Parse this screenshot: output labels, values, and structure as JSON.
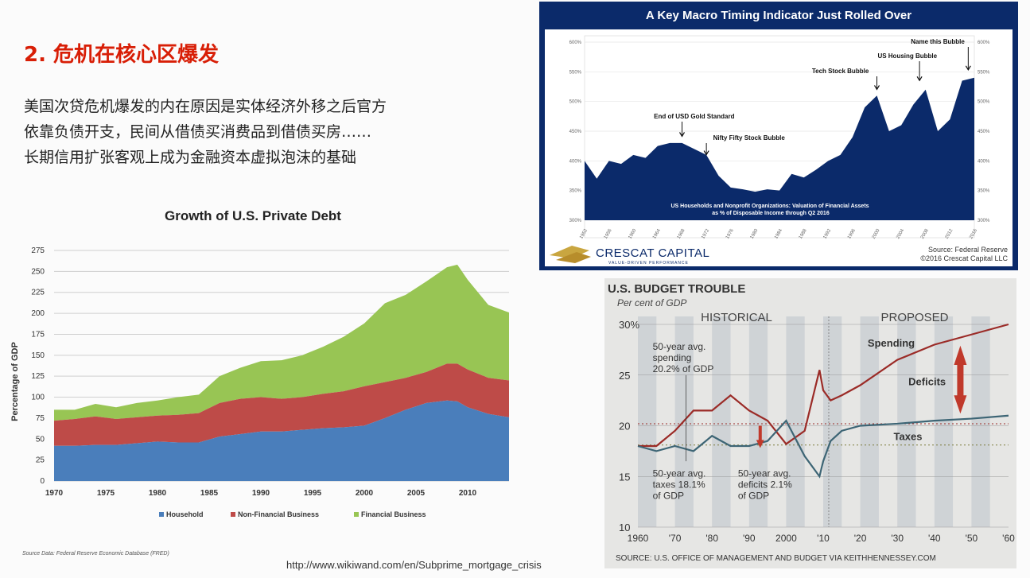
{
  "slide": {
    "title": "2. 危机在核心区爆发",
    "paragraph_lines": [
      "美国次贷危机爆发的内在原因是实体经济外移之后官方",
      "依靠负债开支，民间从借债买消费品到借债买房……",
      "长期信用扩张客观上成为金融资本虚拟泡沫的基础"
    ],
    "url": "http://www.wikiwand.com/en/Subprime_mortgage_crisis"
  },
  "chart_data": [
    {
      "type": "area",
      "title": "Growth of U.S. Private Debt",
      "ylabel": "Percentage of GDP",
      "xlabel": "",
      "ylim": [
        0,
        275
      ],
      "xlim": [
        1970,
        2014
      ],
      "yticks": [
        0,
        25,
        50,
        75,
        100,
        125,
        150,
        175,
        200,
        225,
        250,
        275
      ],
      "xticks": [
        1970,
        1975,
        1980,
        1985,
        1990,
        1995,
        2000,
        2005,
        2010
      ],
      "grid": true,
      "legend_position": "bottom",
      "source_note": "Source Data: Federal Reserve Economic Database (FRED)",
      "x": [
        1970,
        1972,
        1974,
        1976,
        1978,
        1980,
        1982,
        1984,
        1986,
        1988,
        1990,
        1992,
        1994,
        1996,
        1998,
        2000,
        2002,
        2004,
        2006,
        2008,
        2009,
        2010,
        2012,
        2014
      ],
      "series": [
        {
          "name": "Household",
          "color": "#4a7ebb",
          "stacked_top": [
            42,
            42,
            43,
            43,
            45,
            47,
            46,
            46,
            53,
            56,
            59,
            59,
            61,
            63,
            64,
            66,
            75,
            85,
            93,
            96,
            95,
            88,
            80,
            76
          ]
        },
        {
          "name": "Non-Financial Business",
          "color": "#be4b48",
          "stacked_top": [
            72,
            74,
            77,
            74,
            76,
            78,
            79,
            81,
            93,
            98,
            100,
            98,
            100,
            104,
            107,
            113,
            118,
            123,
            130,
            140,
            140,
            133,
            123,
            120
          ]
        },
        {
          "name": "Financial Business",
          "color": "#98c554",
          "stacked_top": [
            85,
            85,
            92,
            88,
            93,
            96,
            100,
            103,
            125,
            135,
            143,
            144,
            150,
            160,
            172,
            188,
            212,
            222,
            238,
            255,
            258,
            240,
            210,
            201
          ]
        }
      ]
    },
    {
      "type": "area",
      "title": "A Key Macro Timing Indicator Just Rolled Over",
      "subtitle": "US Households and Nonprofit Organizations: Valuation of Financial Assets as % of Disposable Income through Q2 2016",
      "ylim": [
        300,
        600
      ],
      "yticks": [
        "300%",
        "350%",
        "400%",
        "450%",
        "500%",
        "550%",
        "600%"
      ],
      "xticks": [
        "1952",
        "1956",
        "1960",
        "1964",
        "1968",
        "1972",
        "1976",
        "1980",
        "1984",
        "1988",
        "1992",
        "1996",
        "2000",
        "2004",
        "2008",
        "2012",
        "2016"
      ],
      "annotations": [
        "End of USD Gold Standard",
        "Nifty Fifty Stock Bubble",
        "Tech Stock Bubble",
        "US Housing Bubble",
        "Name this Bubble"
      ],
      "source": "Source: Federal Reserve",
      "copyright": "©2016 Crescat Capital LLC",
      "logo_text": "CRESCAT CAPITAL",
      "logo_tagline": "VALUE-DRIVEN PERFORMANCE",
      "x": [
        1952,
        1954,
        1956,
        1958,
        1960,
        1962,
        1964,
        1966,
        1968,
        1970,
        1972,
        1974,
        1976,
        1978,
        1980,
        1982,
        1984,
        1986,
        1988,
        1990,
        1992,
        1994,
        1996,
        1998,
        2000,
        2002,
        2004,
        2006,
        2008,
        2010,
        2012,
        2014,
        2016
      ],
      "values": [
        400,
        370,
        400,
        395,
        410,
        405,
        425,
        430,
        430,
        420,
        410,
        375,
        355,
        352,
        348,
        352,
        350,
        378,
        372,
        385,
        400,
        410,
        440,
        490,
        510,
        450,
        460,
        495,
        520,
        450,
        470,
        535,
        540
      ]
    },
    {
      "type": "line",
      "title": "U.S. BUDGET TROUBLE",
      "subtitle": "Per cent of GDP",
      "ylim": [
        10,
        30
      ],
      "yticks": [
        "10",
        "15",
        "20",
        "25",
        "30%"
      ],
      "xticks": [
        "1960",
        "'70",
        "'80",
        "'90",
        "2000",
        "'10",
        "'20",
        "'30",
        "'40",
        "'50",
        "'60"
      ],
      "section_labels": [
        "HISTORICAL",
        "PROPOSED"
      ],
      "annotations": [
        "50-year avg. spending 20.2% of GDP",
        "50-year avg. taxes 18.1% of GDP",
        "50-year avg. deficits 2.1% of GDP",
        "Deficits"
      ],
      "source": "SOURCE: U.S. OFFICE OF MANAGEMENT AND BUDGET VIA KEITHHENNESSEY.COM",
      "x": [
        1960,
        1965,
        1970,
        1975,
        1980,
        1985,
        1990,
        1995,
        2000,
        2005,
        2009,
        2010,
        2012,
        2015,
        2020,
        2030,
        2040,
        2050,
        2060
      ],
      "series": [
        {
          "name": "Spending",
          "color": "#9b2b27",
          "values": [
            18,
            18,
            19.5,
            21.5,
            21.5,
            23,
            21.5,
            20.5,
            18.2,
            19.5,
            25.5,
            23.5,
            22.5,
            23,
            24,
            26.5,
            28,
            29,
            30
          ]
        },
        {
          "name": "Taxes",
          "color": "#3d6575",
          "values": [
            18,
            17.5,
            18,
            17.5,
            19,
            18,
            18,
            18.5,
            20.5,
            17,
            15,
            16.5,
            18.5,
            19.5,
            20,
            20.2,
            20.5,
            20.7,
            21
          ]
        }
      ],
      "avg_lines": {
        "spending": 20.2,
        "taxes": 18.1
      }
    }
  ]
}
